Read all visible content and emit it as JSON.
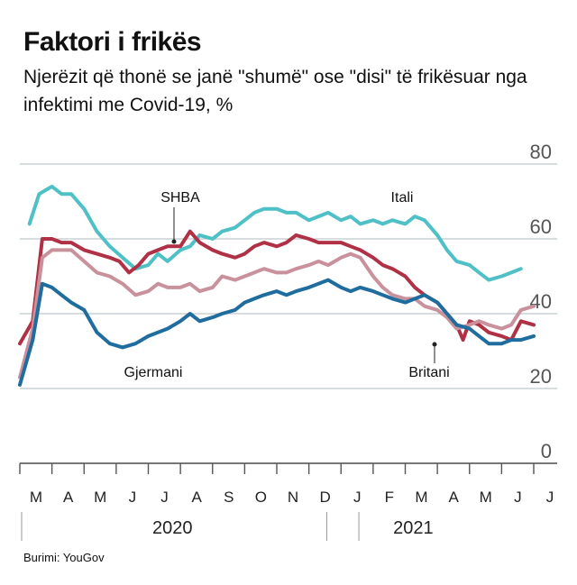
{
  "header": {
    "title": "Faktori i frikës",
    "subtitle": "Njerëzit që thonë se janë \"shumë\" ose \"disi\" të frikësuar nga infektimi me Covid-19, %"
  },
  "source": "Burimi: YouGov",
  "chart_data": {
    "type": "line",
    "ylim": [
      0,
      80
    ],
    "yticks": [
      0,
      20,
      40,
      60,
      80
    ],
    "xlim": [
      0,
      16
    ],
    "x_month_labels": [
      "M",
      "A",
      "M",
      "J",
      "J",
      "A",
      "S",
      "O",
      "N",
      "D",
      "J",
      "F",
      "M",
      "A",
      "M",
      "J",
      "J"
    ],
    "year_labels": [
      {
        "label": "2020",
        "x": 4.75
      },
      {
        "label": "2021",
        "x": 12.25
      }
    ],
    "grid": true,
    "series": [
      {
        "name": "Itali",
        "color": "#4ec0c6",
        "points": [
          [
            0.3,
            64
          ],
          [
            0.6,
            72
          ],
          [
            1.0,
            74
          ],
          [
            1.3,
            72
          ],
          [
            1.6,
            72
          ],
          [
            2.0,
            68
          ],
          [
            2.4,
            62
          ],
          [
            2.8,
            58
          ],
          [
            3.2,
            55
          ],
          [
            3.6,
            52
          ],
          [
            4.0,
            53
          ],
          [
            4.3,
            56
          ],
          [
            4.6,
            54
          ],
          [
            5.0,
            57
          ],
          [
            5.3,
            58
          ],
          [
            5.6,
            61
          ],
          [
            6.0,
            60
          ],
          [
            6.3,
            62
          ],
          [
            6.7,
            63
          ],
          [
            7.0,
            65
          ],
          [
            7.3,
            67
          ],
          [
            7.6,
            68
          ],
          [
            8.0,
            68
          ],
          [
            8.3,
            67
          ],
          [
            8.6,
            67
          ],
          [
            9.0,
            65
          ],
          [
            9.3,
            66
          ],
          [
            9.6,
            67
          ],
          [
            10.0,
            65
          ],
          [
            10.3,
            66
          ],
          [
            10.6,
            64
          ],
          [
            11.0,
            65
          ],
          [
            11.3,
            64
          ],
          [
            11.6,
            65
          ],
          [
            12.0,
            64
          ],
          [
            12.3,
            66
          ],
          [
            12.6,
            65
          ],
          [
            13.0,
            61
          ],
          [
            13.3,
            57
          ],
          [
            13.6,
            54
          ],
          [
            14.0,
            53
          ],
          [
            14.3,
            51
          ],
          [
            14.6,
            49
          ],
          [
            15.0,
            50
          ],
          [
            15.3,
            51
          ],
          [
            15.6,
            52
          ]
        ]
      },
      {
        "name": "SHBA",
        "color": "#b03045",
        "points": [
          [
            0.0,
            32
          ],
          [
            0.4,
            38
          ],
          [
            0.7,
            60
          ],
          [
            1.0,
            60
          ],
          [
            1.3,
            59
          ],
          [
            1.6,
            59
          ],
          [
            2.0,
            57
          ],
          [
            2.4,
            56
          ],
          [
            2.8,
            55
          ],
          [
            3.1,
            54
          ],
          [
            3.4,
            51
          ],
          [
            3.7,
            53
          ],
          [
            4.0,
            56
          ],
          [
            4.3,
            57
          ],
          [
            4.6,
            58
          ],
          [
            5.0,
            58
          ],
          [
            5.3,
            62
          ],
          [
            5.6,
            59
          ],
          [
            6.0,
            57
          ],
          [
            6.3,
            56
          ],
          [
            6.7,
            55
          ],
          [
            7.0,
            56
          ],
          [
            7.3,
            58
          ],
          [
            7.6,
            59
          ],
          [
            8.0,
            58
          ],
          [
            8.3,
            59
          ],
          [
            8.6,
            61
          ],
          [
            9.0,
            60
          ],
          [
            9.3,
            59
          ],
          [
            9.6,
            59
          ],
          [
            10.0,
            59
          ],
          [
            10.3,
            58
          ],
          [
            10.6,
            57
          ],
          [
            11.0,
            55
          ],
          [
            11.3,
            53
          ],
          [
            11.6,
            52
          ],
          [
            12.0,
            50
          ],
          [
            12.3,
            47
          ],
          [
            12.6,
            45
          ],
          [
            13.0,
            43
          ],
          [
            13.3,
            40
          ],
          [
            13.6,
            37
          ],
          [
            13.8,
            33
          ],
          [
            14.0,
            38
          ],
          [
            14.3,
            37
          ],
          [
            14.6,
            35
          ],
          [
            15.0,
            34
          ],
          [
            15.3,
            33
          ],
          [
            15.6,
            38
          ],
          [
            16.0,
            37
          ]
        ]
      },
      {
        "name": "",
        "color": "#c9919b",
        "points": [
          [
            0.0,
            23
          ],
          [
            0.4,
            36
          ],
          [
            0.7,
            55
          ],
          [
            1.0,
            57
          ],
          [
            1.3,
            57
          ],
          [
            1.6,
            57
          ],
          [
            2.0,
            54
          ],
          [
            2.4,
            51
          ],
          [
            2.8,
            50
          ],
          [
            3.2,
            48
          ],
          [
            3.6,
            45
          ],
          [
            4.0,
            46
          ],
          [
            4.3,
            48
          ],
          [
            4.6,
            47
          ],
          [
            5.0,
            47
          ],
          [
            5.3,
            48
          ],
          [
            5.6,
            46
          ],
          [
            6.0,
            47
          ],
          [
            6.3,
            50
          ],
          [
            6.7,
            49
          ],
          [
            7.0,
            50
          ],
          [
            7.3,
            51
          ],
          [
            7.6,
            52
          ],
          [
            8.0,
            51
          ],
          [
            8.3,
            51
          ],
          [
            8.6,
            52
          ],
          [
            9.0,
            53
          ],
          [
            9.3,
            54
          ],
          [
            9.6,
            53
          ],
          [
            10.0,
            55
          ],
          [
            10.3,
            56
          ],
          [
            10.6,
            55
          ],
          [
            11.0,
            50
          ],
          [
            11.3,
            47
          ],
          [
            11.6,
            45
          ],
          [
            12.0,
            44
          ],
          [
            12.3,
            44
          ],
          [
            12.6,
            42
          ],
          [
            13.0,
            41
          ],
          [
            13.3,
            39
          ],
          [
            13.6,
            36
          ],
          [
            14.0,
            37
          ],
          [
            14.3,
            38
          ],
          [
            14.6,
            37
          ],
          [
            15.0,
            36
          ],
          [
            15.3,
            37
          ],
          [
            15.6,
            41
          ],
          [
            16.0,
            42
          ]
        ]
      },
      {
        "name": "Gjermani",
        "color": "#1f6d9e",
        "points": [
          [
            0.0,
            21
          ],
          [
            0.4,
            33
          ],
          [
            0.7,
            48
          ],
          [
            1.0,
            47
          ],
          [
            1.3,
            45
          ],
          [
            1.6,
            43
          ],
          [
            2.0,
            41
          ],
          [
            2.4,
            35
          ],
          [
            2.8,
            32
          ],
          [
            3.2,
            31
          ],
          [
            3.6,
            32
          ],
          [
            4.0,
            34
          ],
          [
            4.3,
            35
          ],
          [
            4.6,
            36
          ],
          [
            5.0,
            38
          ],
          [
            5.3,
            40
          ],
          [
            5.6,
            38
          ],
          [
            6.0,
            39
          ],
          [
            6.3,
            40
          ],
          [
            6.7,
            41
          ],
          [
            7.0,
            43
          ],
          [
            7.3,
            44
          ],
          [
            7.6,
            45
          ],
          [
            8.0,
            46
          ],
          [
            8.3,
            45
          ],
          [
            8.6,
            46
          ],
          [
            9.0,
            47
          ],
          [
            9.3,
            48
          ],
          [
            9.6,
            49
          ],
          [
            10.0,
            47
          ],
          [
            10.3,
            46
          ],
          [
            10.6,
            47
          ],
          [
            11.0,
            46
          ],
          [
            11.3,
            45
          ],
          [
            11.6,
            44
          ],
          [
            12.0,
            43
          ],
          [
            12.3,
            44
          ],
          [
            12.6,
            45
          ],
          [
            13.0,
            43
          ],
          [
            13.3,
            40
          ],
          [
            13.6,
            37
          ],
          [
            14.0,
            36
          ],
          [
            14.3,
            34
          ],
          [
            14.6,
            32
          ],
          [
            15.0,
            32
          ],
          [
            15.3,
            33
          ],
          [
            15.6,
            33
          ],
          [
            16.0,
            34
          ]
        ]
      }
    ],
    "annotations": [
      {
        "text": "SHBA",
        "series": "SHBA"
      },
      {
        "text": "Itali",
        "series": "Itali"
      },
      {
        "text": "Gjermani",
        "series": "Gjermani"
      },
      {
        "text": "Britani",
        "series": "Britani"
      }
    ]
  }
}
